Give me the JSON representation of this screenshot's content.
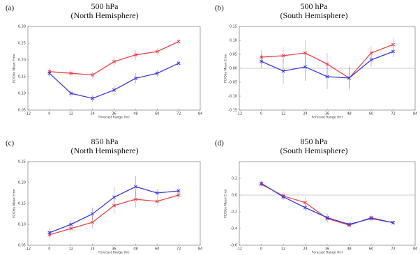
{
  "chart_data": [
    {
      "type": "line",
      "panel_label": "(a)",
      "title": "500 hPa",
      "subtitle": "(North Hemisphere)",
      "xlabel": "Forecast Range (hr)",
      "ylabel": "FC/Obs Mean Error",
      "x": [
        0,
        12,
        24,
        36,
        48,
        60,
        72
      ],
      "xlim": [
        -12,
        84
      ],
      "xticks": [
        -12,
        0,
        12,
        24,
        36,
        48,
        60,
        72,
        84
      ],
      "ylim": [
        0.05,
        0.3
      ],
      "yticks": [
        0.05,
        {
          "value": 0.1,
          "label": "0.10"
        },
        0.15,
        {
          "value": 0.2,
          "label": "0.20"
        },
        0.25,
        {
          "value": 0.3,
          "label": "0.30"
        }
      ],
      "zero_line": false,
      "series": [
        {
          "color": "#e8434a",
          "values": [
            0.165,
            0.16,
            0.155,
            0.195,
            0.215,
            0.225,
            0.255
          ],
          "errors": [
            0.01,
            0.01,
            0.01,
            0.015,
            0.015,
            0.01,
            0.01
          ]
        },
        {
          "color": "#3a3adc",
          "values": [
            0.16,
            0.1,
            0.085,
            0.11,
            0.145,
            0.16,
            0.19
          ],
          "errors": [
            0.01,
            0.01,
            0.01,
            0.015,
            0.015,
            0.01,
            0.01
          ]
        }
      ]
    },
    {
      "type": "line",
      "panel_label": "(b)",
      "title": "500 hPa",
      "subtitle": "(South Hemisphere)",
      "xlabel": "Forecast Range (hr)",
      "ylabel": "FC/Obs Mean Error",
      "x": [
        0,
        12,
        24,
        36,
        48,
        60,
        72
      ],
      "xlim": [
        -12,
        84
      ],
      "xticks": [
        -12,
        0,
        12,
        24,
        36,
        48,
        60,
        72,
        84
      ],
      "ylim": [
        -0.15,
        0.15
      ],
      "yticks": [
        -0.15,
        {
          "value": -0.1,
          "label": "-0.10"
        },
        -0.05,
        {
          "value": 0,
          "label": "0.00"
        },
        0.05,
        {
          "value": 0.1,
          "label": "0.10"
        },
        0.15
      ],
      "zero_line": true,
      "series": [
        {
          "color": "#e8434a",
          "values": [
            0.04,
            0.045,
            0.055,
            0.015,
            -0.035,
            0.055,
            0.085
          ],
          "errors": [
            0.025,
            0.03,
            0.045,
            0.04,
            0.035,
            0.025,
            0.025
          ]
        },
        {
          "color": "#3a3adc",
          "values": [
            0.025,
            -0.01,
            0.005,
            -0.03,
            -0.035,
            0.03,
            0.06
          ],
          "errors": [
            0.025,
            0.045,
            0.05,
            0.045,
            0.045,
            0.025,
            0.02
          ]
        }
      ]
    },
    {
      "type": "line",
      "panel_label": "(c)",
      "title": "850 hPa",
      "subtitle": "(North Hemisphere)",
      "xlabel": "Forecast Range (hr)",
      "ylabel": "FC/Obs Mean Error",
      "x": [
        0,
        12,
        24,
        36,
        48,
        60,
        72
      ],
      "xlim": [
        -12,
        84
      ],
      "xticks": [
        -12,
        0,
        12,
        24,
        36,
        48,
        60,
        72,
        84
      ],
      "ylim": [
        0.05,
        0.25
      ],
      "yticks": [
        0.05,
        {
          "value": 0.1,
          "label": "0.10"
        },
        0.15,
        {
          "value": 0.2,
          "label": "0.20"
        },
        0.25
      ],
      "zero_line": false,
      "series": [
        {
          "color": "#e8434a",
          "values": [
            0.075,
            0.09,
            0.105,
            0.145,
            0.16,
            0.155,
            0.17
          ],
          "errors": [
            0.01,
            0.01,
            0.015,
            0.02,
            0.02,
            0.01,
            0.01
          ]
        },
        {
          "color": "#3a3adc",
          "values": [
            0.08,
            0.1,
            0.125,
            0.165,
            0.19,
            0.175,
            0.18
          ],
          "errors": [
            0.01,
            0.01,
            0.015,
            0.025,
            0.025,
            0.01,
            0.01
          ]
        }
      ]
    },
    {
      "type": "line",
      "panel_label": "(d)",
      "title": "850 hPa",
      "subtitle": "(South Hemisphere)",
      "xlabel": "Forecast Range (hr)",
      "ylabel": "FC/Obs Mean Error",
      "x": [
        0,
        12,
        24,
        36,
        48,
        60,
        72
      ],
      "xlim": [
        -12,
        84
      ],
      "xticks": [
        -12,
        0,
        12,
        24,
        36,
        48,
        60,
        72,
        84
      ],
      "ylim": [
        -0.6,
        0.4
      ],
      "yticks": [
        -0.6,
        -0.4,
        -0.2,
        {
          "value": 0,
          "label": "0.0"
        },
        0.2
      ],
      "zero_line": true,
      "series": [
        {
          "color": "#e8434a",
          "values": [
            0.13,
            -0.01,
            -0.09,
            -0.28,
            -0.36,
            -0.27,
            -0.33
          ],
          "errors": [
            0.03,
            0.05,
            0.06,
            0.05,
            0.03,
            0.03,
            0.03
          ]
        },
        {
          "color": "#3a3adc",
          "values": [
            0.14,
            -0.02,
            -0.15,
            -0.27,
            -0.35,
            -0.28,
            -0.33
          ],
          "errors": [
            0.03,
            0.04,
            0.04,
            0.05,
            0.03,
            0.03,
            0.02
          ]
        }
      ]
    }
  ]
}
